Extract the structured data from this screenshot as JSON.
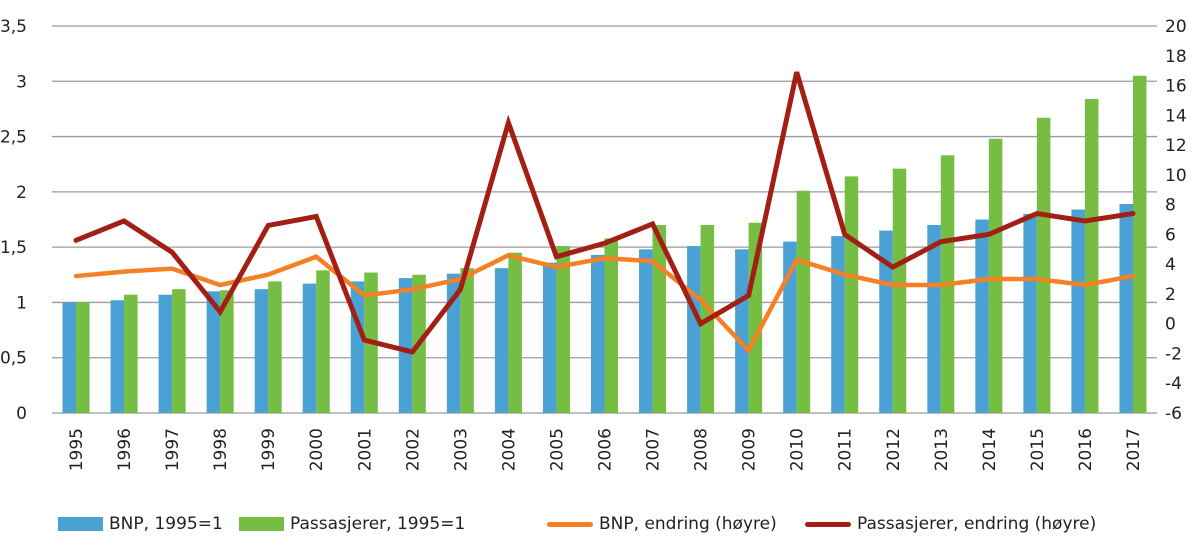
{
  "chart_data": {
    "type": "bar+line",
    "title": "",
    "categories": [
      "1995",
      "1996",
      "1997",
      "1998",
      "1999",
      "2000",
      "2001",
      "2002",
      "2003",
      "2004",
      "2005",
      "2006",
      "2007",
      "2008",
      "2009",
      "2010",
      "2011",
      "2012",
      "2013",
      "2014",
      "2015",
      "2016",
      "2017"
    ],
    "y_left": {
      "range": [
        0,
        3.5
      ],
      "ticks": [
        "0",
        "0,5",
        "1",
        "1,5",
        "2",
        "2,5",
        "3",
        "3,5"
      ],
      "tick_values": [
        0,
        0.5,
        1,
        1.5,
        2,
        2.5,
        3,
        3.5
      ]
    },
    "y_right": {
      "range": [
        -6,
        20
      ],
      "ticks": [
        "-6",
        "-4",
        "-2",
        "0",
        "2",
        "4",
        "6",
        "8",
        "10",
        "12",
        "14",
        "16",
        "18",
        "20"
      ],
      "tick_values": [
        -6,
        -4,
        -2,
        0,
        2,
        4,
        6,
        8,
        10,
        12,
        14,
        16,
        18,
        20
      ]
    },
    "grid": true,
    "legend_position": "bottom",
    "series": [
      {
        "name": "BNP, 1995=1",
        "kind": "bar",
        "axis": "left",
        "color": "#4aa1d3",
        "values": [
          1.0,
          1.02,
          1.07,
          1.1,
          1.12,
          1.17,
          1.19,
          1.22,
          1.26,
          1.31,
          1.36,
          1.43,
          1.48,
          1.51,
          1.48,
          1.55,
          1.6,
          1.65,
          1.7,
          1.75,
          1.8,
          1.84,
          1.89
        ]
      },
      {
        "name": "Passasjerer, 1995=1",
        "kind": "bar",
        "axis": "left",
        "color": "#76bd43",
        "values": [
          1.0,
          1.07,
          1.12,
          1.11,
          1.19,
          1.29,
          1.27,
          1.25,
          1.31,
          1.45,
          1.51,
          1.58,
          1.7,
          1.7,
          1.72,
          2.01,
          2.14,
          2.21,
          2.33,
          2.48,
          2.67,
          2.84,
          3.05
        ]
      },
      {
        "name": "BNP, endring (høyre)",
        "kind": "line",
        "axis": "right",
        "color": "#f58025",
        "values": [
          3.2,
          3.5,
          3.7,
          2.6,
          3.3,
          4.5,
          1.9,
          2.3,
          3.0,
          4.6,
          3.8,
          4.4,
          4.2,
          1.6,
          -1.8,
          4.3,
          3.3,
          2.6,
          2.6,
          3.0,
          3.0,
          2.6,
          3.2
        ]
      },
      {
        "name": "Passasjerer, endring (høyre)",
        "kind": "line",
        "axis": "right",
        "color": "#a21f14",
        "values": [
          5.6,
          6.9,
          4.8,
          0.8,
          6.6,
          7.2,
          -1.1,
          -1.9,
          2.3,
          13.5,
          4.5,
          5.4,
          6.7,
          0.0,
          1.9,
          16.9,
          6.0,
          3.8,
          5.5,
          6.0,
          7.4,
          6.9,
          7.4
        ]
      }
    ]
  }
}
